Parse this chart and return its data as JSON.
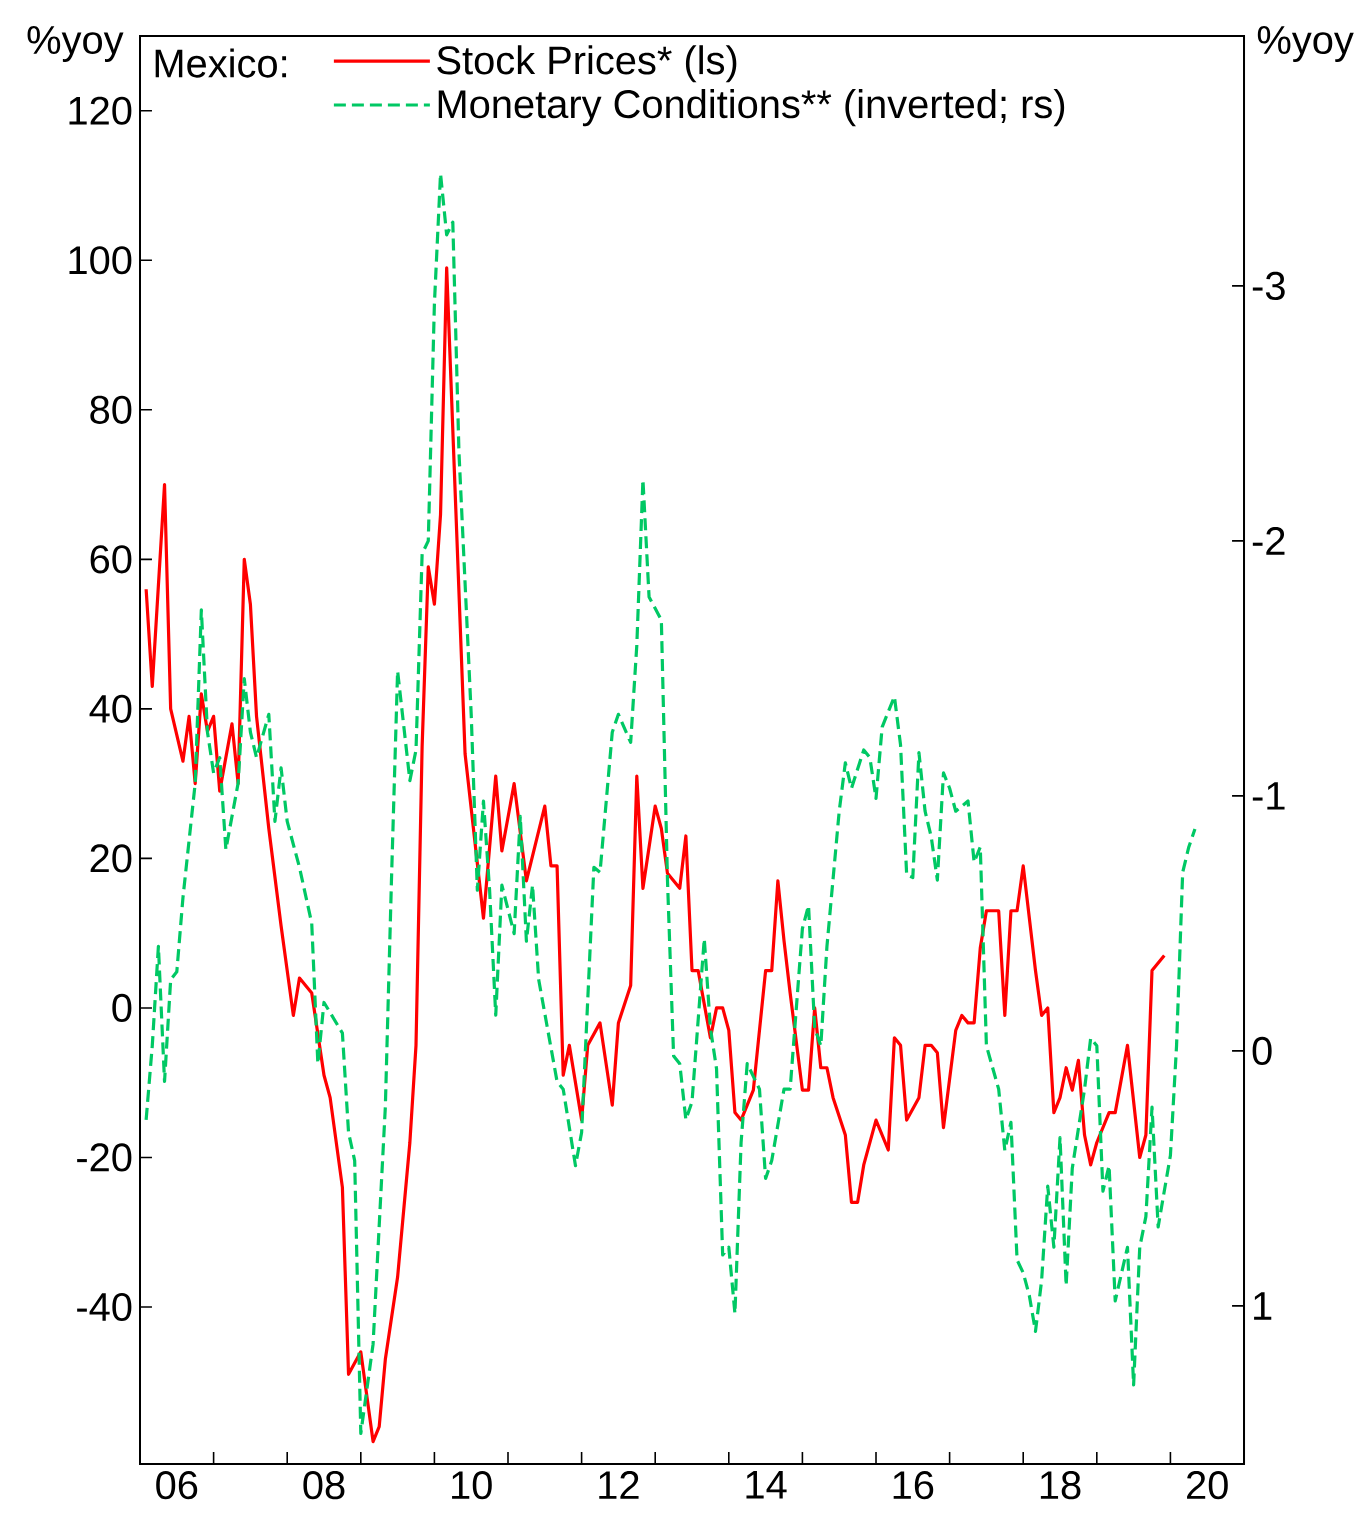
{
  "chart_data": {
    "type": "line",
    "title": "Mexico:",
    "ylabel": "%yoy",
    "y2label": "%yoy",
    "legend": "top left",
    "xlim": [
      "2006-01",
      "2021-01"
    ],
    "xticks": [
      {
        "value": "2006-07",
        "label": "06"
      },
      {
        "value": "2007-01",
        "label": null
      },
      {
        "value": "2008-01",
        "label": null
      },
      {
        "value": "2008-07",
        "label": "08"
      },
      {
        "value": "2009-01",
        "label": null
      },
      {
        "value": "2010-01",
        "label": null
      },
      {
        "value": "2010-07",
        "label": "10"
      },
      {
        "value": "2011-01",
        "label": null
      },
      {
        "value": "2012-01",
        "label": null
      },
      {
        "value": "2012-07",
        "label": "12"
      },
      {
        "value": "2013-01",
        "label": null
      },
      {
        "value": "2014-01",
        "label": null
      },
      {
        "value": "2014-07",
        "label": "14"
      },
      {
        "value": "2015-01",
        "label": null
      },
      {
        "value": "2016-01",
        "label": null
      },
      {
        "value": "2016-07",
        "label": "16"
      },
      {
        "value": "2017-01",
        "label": null
      },
      {
        "value": "2018-01",
        "label": null
      },
      {
        "value": "2018-07",
        "label": "18"
      },
      {
        "value": "2019-01",
        "label": null
      },
      {
        "value": "2020-01",
        "label": null
      },
      {
        "value": "2020-07",
        "label": "20"
      }
    ],
    "ylim": [
      -61,
      130
    ],
    "yticks": [
      -40,
      -20,
      0,
      20,
      40,
      60,
      80,
      100,
      120
    ],
    "y2lim": [
      1.62,
      -3.98
    ],
    "y2ticks": [
      1,
      0,
      -1,
      -2,
      -3
    ],
    "series": [
      {
        "name": "Stock Prices* (ls)",
        "color": "#ff0000",
        "line_style": "solid",
        "x": [
          "2006-02",
          "2006-03",
          "2006-05",
          "2006-06",
          "2006-08",
          "2006-09",
          "2006-10",
          "2006-11",
          "2006-12",
          "2007-01",
          "2007-02",
          "2007-04",
          "2007-05",
          "2007-06",
          "2007-07",
          "2007-08",
          "2007-10",
          "2007-12",
          "2008-02",
          "2008-03",
          "2008-05",
          "2008-07",
          "2008-08",
          "2008-10",
          "2008-11",
          "2009-01",
          "2009-03",
          "2009-04",
          "2009-05",
          "2009-07",
          "2009-09",
          "2009-10",
          "2009-11",
          "2009-12",
          "2010-01",
          "2010-02",
          "2010-03",
          "2010-06",
          "2010-09",
          "2010-11",
          "2010-12",
          "2011-02",
          "2011-04",
          "2011-07",
          "2011-08",
          "2011-09",
          "2011-10",
          "2011-11",
          "2012-01",
          "2012-02",
          "2012-04",
          "2012-06",
          "2012-07",
          "2012-09",
          "2012-10",
          "2012-11",
          "2013-01",
          "2013-02",
          "2013-03",
          "2013-05",
          "2013-06",
          "2013-07",
          "2013-08",
          "2013-10",
          "2013-11",
          "2013-12",
          "2014-01",
          "2014-02",
          "2014-03",
          "2014-05",
          "2014-07",
          "2014-08",
          "2014-09",
          "2014-10",
          "2014-11",
          "2015-01",
          "2015-02",
          "2015-03",
          "2015-04",
          "2015-05",
          "2015-06",
          "2015-08",
          "2015-09",
          "2015-10",
          "2015-11",
          "2015-12",
          "2016-01",
          "2016-03",
          "2016-04",
          "2016-05",
          "2016-06",
          "2016-08",
          "2016-09",
          "2016-10",
          "2016-11",
          "2016-12",
          "2017-02",
          "2017-03",
          "2017-04",
          "2017-05",
          "2017-06",
          "2017-07",
          "2017-08",
          "2017-09",
          "2017-10",
          "2017-11",
          "2017-12",
          "2018-01",
          "2018-03",
          "2018-04",
          "2018-05",
          "2018-06",
          "2018-07",
          "2018-08",
          "2018-09",
          "2018-10",
          "2018-11",
          "2018-12",
          "2019-01",
          "2019-03",
          "2019-04",
          "2019-06",
          "2019-08",
          "2019-09",
          "2019-10",
          "2019-12"
        ],
        "values": [
          56,
          43,
          70,
          40,
          33,
          39,
          30,
          42,
          37,
          39,
          29,
          38,
          30,
          60,
          54,
          39,
          24,
          11,
          -1,
          4,
          2,
          -9,
          -12,
          -24,
          -49,
          -46,
          -58,
          -56,
          -47,
          -36,
          -18,
          -5,
          35,
          59,
          54,
          66,
          99,
          34,
          12,
          31,
          21,
          30,
          17,
          27,
          19,
          19,
          -9,
          -5,
          -15,
          -5,
          -2,
          -13,
          -2,
          3,
          31,
          16,
          27,
          24,
          18,
          16,
          23,
          5,
          5,
          -4,
          0,
          0,
          -3,
          -14,
          -15,
          -11,
          5,
          5,
          17,
          9,
          2,
          -11,
          -11,
          0,
          -8,
          -8,
          -12,
          -17,
          -26,
          -26,
          -21,
          -18,
          -15,
          -19,
          -4,
          -5,
          -15,
          -12,
          -5,
          -5,
          -6,
          -16,
          -3,
          -1,
          -2,
          -2,
          8,
          13,
          13,
          13,
          -1,
          13,
          13,
          19,
          5,
          -1,
          0,
          -14,
          -12,
          -8,
          -11,
          -7,
          -17,
          -21,
          -18,
          -14,
          -14,
          -5,
          -20,
          -17,
          5,
          7
        ]
      },
      {
        "name": "Monetary Conditions** (inverted; rs)",
        "color": "#00c864",
        "line_style": "dashed",
        "axis": "y2",
        "x": [
          "2006-02",
          "2006-03",
          "2006-04",
          "2006-05",
          "2006-06",
          "2006-07",
          "2006-08",
          "2006-10",
          "2006-11",
          "2006-12",
          "2007-01",
          "2007-02",
          "2007-03",
          "2007-05",
          "2007-06",
          "2007-07",
          "2007-08",
          "2007-10",
          "2007-11",
          "2007-12",
          "2008-01",
          "2008-03",
          "2008-05",
          "2008-06",
          "2008-07",
          "2008-10",
          "2008-11",
          "2008-12",
          "2009-01",
          "2009-03",
          "2009-05",
          "2009-06",
          "2009-07",
          "2009-09",
          "2009-10",
          "2009-11",
          "2009-12",
          "2010-01",
          "2010-02",
          "2010-03",
          "2010-04",
          "2010-05",
          "2010-07",
          "2010-08",
          "2010-09",
          "2010-10",
          "2010-11",
          "2010-12",
          "2011-02",
          "2011-03",
          "2011-04",
          "2011-05",
          "2011-06",
          "2011-09",
          "2011-10",
          "2011-12",
          "2012-01",
          "2012-03",
          "2012-04",
          "2012-06",
          "2012-07",
          "2012-09",
          "2012-10",
          "2012-11",
          "2012-12",
          "2013-02",
          "2013-03",
          "2013-04",
          "2013-05",
          "2013-06",
          "2013-07",
          "2013-09",
          "2013-10",
          "2013-11",
          "2013-12",
          "2014-01",
          "2014-02",
          "2014-03",
          "2014-04",
          "2014-06",
          "2014-07",
          "2014-08",
          "2014-10",
          "2014-11",
          "2015-01",
          "2015-02",
          "2015-03",
          "2015-04",
          "2015-05",
          "2015-07",
          "2015-08",
          "2015-09",
          "2015-11",
          "2015-12",
          "2016-01",
          "2016-02",
          "2016-04",
          "2016-05",
          "2016-06",
          "2016-07",
          "2016-08",
          "2016-09",
          "2016-10",
          "2016-11",
          "2016-12",
          "2017-01",
          "2017-02",
          "2017-04",
          "2017-05",
          "2017-06",
          "2017-07",
          "2017-09",
          "2017-10",
          "2017-11",
          "2017-12",
          "2018-01",
          "2018-02",
          "2018-03",
          "2018-04",
          "2018-05",
          "2018-06",
          "2018-07",
          "2018-08",
          "2018-09",
          "2018-11",
          "2018-12",
          "2019-01",
          "2019-02",
          "2019-03",
          "2019-04",
          "2019-06",
          "2019-07",
          "2019-08",
          "2019-09",
          "2019-10",
          "2019-11",
          "2020-01",
          "2020-02",
          "2020-03",
          "2020-04",
          "2020-05"
        ],
        "values": [
          0.27,
          -0.02,
          -0.41,
          0.12,
          -0.28,
          -0.31,
          -0.6,
          -1.05,
          -1.73,
          -1.25,
          -1.09,
          -1.15,
          -0.79,
          -1.05,
          -1.46,
          -1.25,
          -1.15,
          -1.32,
          -0.9,
          -1.11,
          -0.9,
          -0.72,
          -0.5,
          0.05,
          -0.19,
          -0.07,
          0.32,
          0.43,
          1.5,
          1.15,
          0.22,
          -0.67,
          -1.49,
          -1.06,
          -1.18,
          -1.95,
          -2.0,
          -2.93,
          -3.44,
          -3.2,
          -3.25,
          -2.35,
          -1.32,
          -0.63,
          -0.98,
          -0.63,
          -0.14,
          -0.65,
          -0.46,
          -0.92,
          -0.43,
          -0.65,
          -0.28,
          0.12,
          0.15,
          0.45,
          0.32,
          -0.72,
          -0.7,
          -1.25,
          -1.32,
          -1.21,
          -1.59,
          -2.24,
          -1.78,
          -1.69,
          -0.67,
          0.02,
          0.05,
          0.27,
          0.2,
          -0.44,
          -0.09,
          0.07,
          0.8,
          0.77,
          1.03,
          0.36,
          0.05,
          0.15,
          0.5,
          0.43,
          0.15,
          0.15,
          -0.48,
          -0.57,
          -0.09,
          -0.02,
          -0.41,
          -0.94,
          -1.13,
          -1.03,
          -1.18,
          -1.15,
          -0.99,
          -1.27,
          -1.39,
          -1.2,
          -0.69,
          -0.68,
          -1.17,
          -0.94,
          -0.84,
          -0.67,
          -1.09,
          -1.03,
          -0.94,
          -0.98,
          -0.74,
          -0.8,
          -0.02,
          0.15,
          0.39,
          0.28,
          0.82,
          0.87,
          0.96,
          1.1,
          0.9,
          0.53,
          0.77,
          0.34,
          0.92,
          0.46,
          0.15,
          -0.05,
          -0.02,
          0.55,
          0.45,
          0.98,
          0.77,
          1.31,
          0.77,
          0.65,
          0.22,
          0.69,
          0.41,
          -0.02,
          -0.7,
          -0.8,
          -0.87
        ]
      }
    ]
  }
}
